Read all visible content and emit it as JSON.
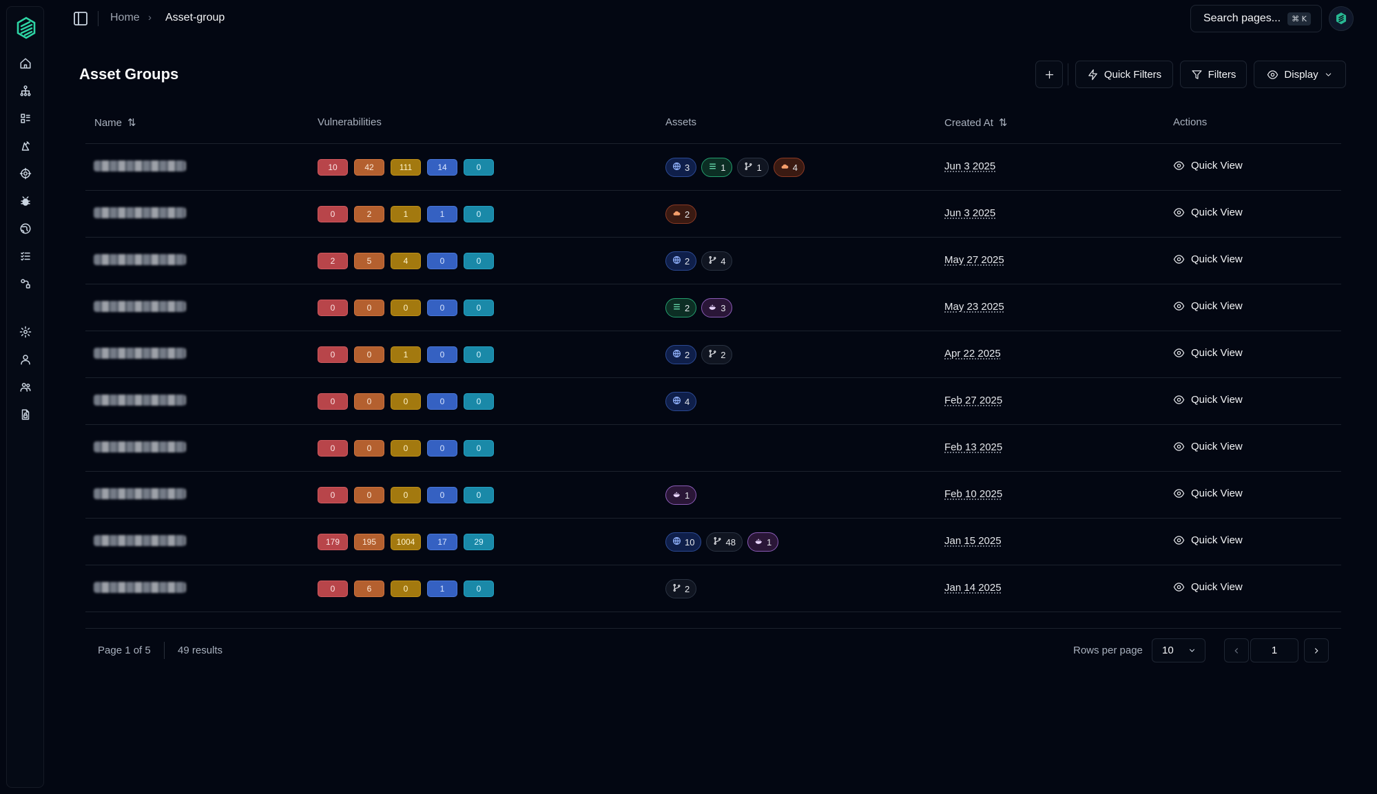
{
  "breadcrumb": {
    "home": "Home",
    "separator": "›",
    "current": "Asset-group"
  },
  "search": {
    "label": "Search pages...",
    "shortcut": "⌘ K"
  },
  "page": {
    "title": "Asset Groups"
  },
  "toolbar": {
    "add_icon": "plus-icon",
    "quick_filters": "Quick Filters",
    "filters": "Filters",
    "display": "Display"
  },
  "table": {
    "columns": {
      "name": "Name",
      "vulnerabilities": "Vulnerabilities",
      "assets": "Assets",
      "created_at": "Created At",
      "actions": "Actions"
    },
    "sort_icon": "⇅",
    "action_label": "Quick View",
    "rows": [
      {
        "vulns": [
          "10",
          "42",
          "111",
          "14",
          "0"
        ],
        "assets": [
          {
            "type": "domain",
            "count": "3"
          },
          {
            "type": "ip",
            "count": "1"
          },
          {
            "type": "repo",
            "count": "1"
          },
          {
            "type": "cloud",
            "count": "4"
          }
        ],
        "created": "Jun 3 2025"
      },
      {
        "vulns": [
          "0",
          "2",
          "1",
          "1",
          "0"
        ],
        "assets": [
          {
            "type": "cloud",
            "count": "2"
          }
        ],
        "created": "Jun 3 2025"
      },
      {
        "vulns": [
          "2",
          "5",
          "4",
          "0",
          "0"
        ],
        "assets": [
          {
            "type": "domain",
            "count": "2"
          },
          {
            "type": "repo",
            "count": "4"
          }
        ],
        "created": "May 27 2025"
      },
      {
        "vulns": [
          "0",
          "0",
          "0",
          "0",
          "0"
        ],
        "assets": [
          {
            "type": "ip",
            "count": "2"
          },
          {
            "type": "container",
            "count": "3"
          }
        ],
        "created": "May 23 2025"
      },
      {
        "vulns": [
          "0",
          "0",
          "1",
          "0",
          "0"
        ],
        "assets": [
          {
            "type": "domain",
            "count": "2"
          },
          {
            "type": "repo",
            "count": "2"
          }
        ],
        "created": "Apr 22 2025"
      },
      {
        "vulns": [
          "0",
          "0",
          "0",
          "0",
          "0"
        ],
        "assets": [
          {
            "type": "domain",
            "count": "4"
          }
        ],
        "created": "Feb 27 2025"
      },
      {
        "vulns": [
          "0",
          "0",
          "0",
          "0",
          "0"
        ],
        "assets": [],
        "created": "Feb 13 2025"
      },
      {
        "vulns": [
          "0",
          "0",
          "0",
          "0",
          "0"
        ],
        "assets": [
          {
            "type": "container",
            "count": "1"
          }
        ],
        "created": "Feb 10 2025"
      },
      {
        "vulns": [
          "179",
          "195",
          "1004",
          "17",
          "29"
        ],
        "assets": [
          {
            "type": "domain",
            "count": "10"
          },
          {
            "type": "repo",
            "count": "48"
          },
          {
            "type": "container",
            "count": "1"
          }
        ],
        "created": "Jan 15 2025"
      },
      {
        "vulns": [
          "0",
          "6",
          "0",
          "1",
          "0"
        ],
        "assets": [
          {
            "type": "repo",
            "count": "2"
          }
        ],
        "created": "Jan 14 2025"
      }
    ]
  },
  "footer": {
    "page_info": "Page 1 of 5",
    "results": "49 results",
    "rows_per_page_label": "Rows per page",
    "rows_per_page": "10",
    "current_page": "1"
  },
  "colors": {
    "background": "#030712",
    "brand": "#2dd4a4",
    "critical": "#b8454a",
    "high": "#b4602f",
    "medium": "#a3790f",
    "low": "#3561c2",
    "info": "#1a89a8"
  },
  "sidebar_icons": [
    "home-icon",
    "hierarchy-icon",
    "asset-list-icon",
    "alert-icon",
    "target-icon",
    "bug-icon",
    "globe-icon",
    "checklist-icon",
    "integrations-icon",
    "settings-icon",
    "user-icon",
    "team-icon",
    "file-lock-icon"
  ]
}
